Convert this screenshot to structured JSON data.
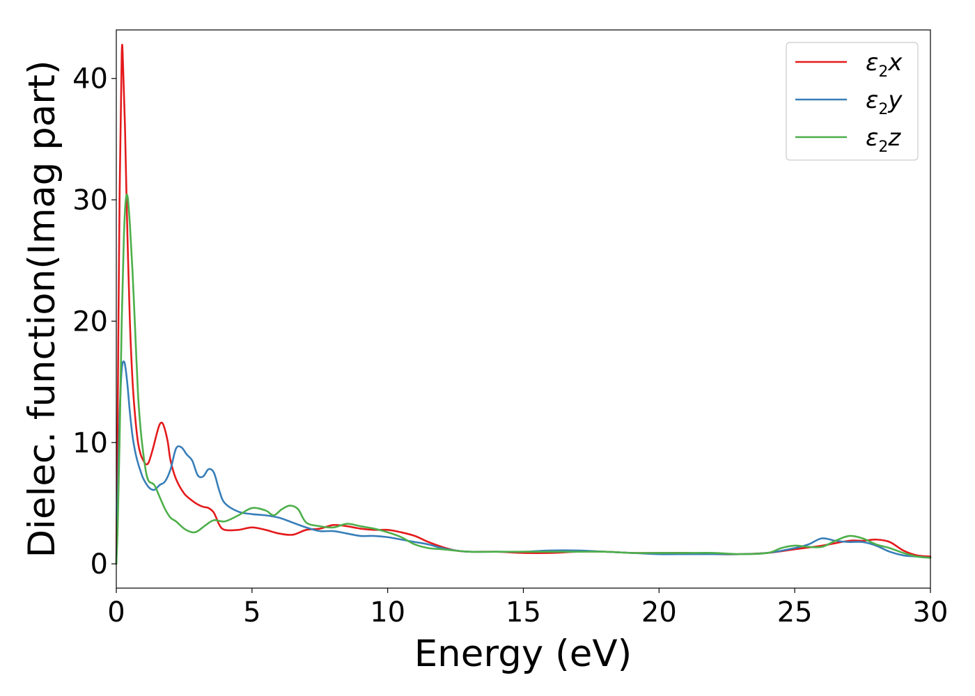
{
  "chart_data": {
    "type": "line",
    "title": "",
    "xlabel": "Energy (eV)",
    "ylabel": "Dielec. function(Imag part)",
    "xlim": [
      0,
      30
    ],
    "ylim": [
      -2,
      44
    ],
    "xticks": [
      0,
      5,
      10,
      15,
      20,
      25,
      30
    ],
    "yticks": [
      0,
      10,
      20,
      30,
      40
    ],
    "xtick_labels": [
      "0",
      "5",
      "10",
      "15",
      "20",
      "25",
      "30"
    ],
    "ytick_labels": [
      "0",
      "10",
      "20",
      "30",
      "40"
    ],
    "grid": false,
    "legend_position": "top-right",
    "series": [
      {
        "name": "ε2x",
        "legend": {
          "base": "ε",
          "sub": "2",
          "comp": "x"
        },
        "color": "#e41a1c",
        "x": [
          0,
          0.05,
          0.12,
          0.2,
          0.25,
          0.32,
          0.4,
          0.5,
          0.6,
          0.7,
          0.8,
          0.9,
          1.0,
          1.1,
          1.2,
          1.35,
          1.5,
          1.6,
          1.7,
          1.8,
          1.9,
          2.0,
          2.2,
          2.5,
          2.8,
          3.0,
          3.2,
          3.4,
          3.6,
          3.8,
          4.0,
          4.5,
          5.0,
          5.5,
          6.0,
          6.5,
          7.0,
          7.5,
          8.0,
          8.5,
          9.0,
          9.5,
          10.0,
          10.5,
          11.0,
          11.5,
          12.0,
          12.5,
          13.0,
          14.0,
          15.0,
          16.0,
          17.0,
          18.0,
          19.0,
          20.0,
          21.0,
          22.0,
          23.0,
          24.0,
          25.0,
          26.0,
          27.0,
          27.5,
          28.0,
          28.5,
          29.0,
          29.5,
          30.0
        ],
        "y": [
          0,
          12,
          30,
          42,
          41,
          36,
          28,
          20,
          15,
          12,
          10,
          9,
          8.5,
          8.2,
          8.4,
          9.5,
          10.8,
          11.5,
          11.6,
          11,
          10,
          8.5,
          7,
          5.8,
          5.2,
          4.9,
          4.7,
          4.6,
          4.2,
          3.2,
          2.8,
          2.8,
          3.0,
          2.8,
          2.5,
          2.4,
          2.8,
          2.9,
          3.2,
          3.1,
          2.9,
          2.8,
          2.8,
          2.6,
          2.3,
          1.8,
          1.4,
          1.1,
          1.0,
          1.0,
          0.9,
          0.9,
          1.0,
          1.0,
          0.9,
          0.9,
          0.9,
          0.8,
          0.8,
          0.9,
          1.2,
          1.5,
          1.9,
          1.9,
          2.0,
          1.8,
          1.1,
          0.7,
          0.6
        ]
      },
      {
        "name": "ε2y",
        "legend": {
          "base": "ε",
          "sub": "2",
          "comp": "y"
        },
        "color": "#377eb8",
        "x": [
          0,
          0.05,
          0.12,
          0.2,
          0.3,
          0.4,
          0.5,
          0.6,
          0.7,
          0.8,
          0.9,
          1.0,
          1.2,
          1.4,
          1.6,
          1.8,
          2.0,
          2.2,
          2.4,
          2.6,
          2.8,
          3.0,
          3.2,
          3.4,
          3.6,
          3.8,
          4.0,
          4.5,
          5.0,
          5.5,
          6.0,
          6.5,
          7.0,
          7.5,
          8.0,
          8.5,
          9.0,
          9.5,
          10.0,
          10.5,
          11.0,
          11.5,
          12.0,
          12.5,
          13.0,
          14.0,
          15.0,
          16.0,
          17.0,
          18.0,
          19.0,
          20.0,
          21.0,
          22.0,
          23.0,
          24.0,
          25.0,
          25.5,
          26.0,
          26.5,
          27.0,
          27.5,
          28.0,
          28.5,
          29.0,
          29.5,
          30.0
        ],
        "y": [
          0,
          5,
          12,
          16,
          16.6,
          15,
          12.5,
          10.5,
          9.2,
          8.3,
          7.6,
          7,
          6.3,
          6.1,
          6.5,
          6.8,
          7.8,
          9.5,
          9.6,
          9.0,
          8.5,
          7.3,
          7.2,
          7.8,
          7.5,
          6.0,
          5.0,
          4.3,
          4.1,
          4.0,
          3.8,
          3.4,
          3.0,
          2.7,
          2.7,
          2.5,
          2.3,
          2.3,
          2.2,
          2.0,
          1.8,
          1.6,
          1.3,
          1.1,
          1.0,
          1.0,
          1.0,
          1.1,
          1.1,
          1.0,
          0.9,
          0.8,
          0.8,
          0.8,
          0.8,
          0.9,
          1.3,
          1.6,
          2.1,
          1.9,
          1.8,
          1.8,
          1.5,
          1.0,
          0.7,
          0.6,
          0.5
        ]
      },
      {
        "name": "ε2z",
        "legend": {
          "base": "ε",
          "sub": "2",
          "comp": "z"
        },
        "color": "#4daf4a",
        "x": [
          0,
          0.05,
          0.12,
          0.2,
          0.28,
          0.35,
          0.42,
          0.5,
          0.6,
          0.7,
          0.8,
          0.9,
          1.0,
          1.1,
          1.2,
          1.4,
          1.6,
          1.8,
          2.0,
          2.2,
          2.5,
          2.8,
          3.0,
          3.3,
          3.6,
          4.0,
          4.5,
          5.0,
          5.5,
          5.8,
          6.1,
          6.4,
          6.7,
          7.0,
          7.5,
          8.0,
          8.5,
          9.0,
          9.5,
          10.0,
          10.5,
          11.0,
          11.5,
          12.0,
          13.0,
          14.0,
          15.0,
          16.0,
          17.0,
          18.0,
          19.0,
          20.0,
          21.0,
          22.0,
          23.0,
          24.0,
          24.5,
          25.0,
          25.5,
          26.0,
          26.5,
          27.0,
          27.5,
          28.0,
          28.5,
          29.0,
          29.5,
          30.0
        ],
        "y": [
          0,
          3,
          10,
          20,
          27,
          30,
          30.2,
          28,
          24,
          19,
          14,
          11,
          9,
          7.5,
          6.8,
          6.5,
          5.5,
          4.5,
          3.8,
          3.5,
          2.9,
          2.6,
          2.7,
          3.2,
          3.6,
          3.5,
          4.0,
          4.6,
          4.4,
          4.0,
          4.5,
          4.8,
          4.5,
          3.4,
          3.1,
          3.0,
          3.3,
          3.1,
          2.9,
          2.6,
          2.2,
          1.6,
          1.3,
          1.2,
          1.0,
          1.0,
          1.0,
          1.0,
          1.0,
          1.0,
          0.9,
          0.9,
          0.9,
          0.9,
          0.8,
          0.9,
          1.3,
          1.5,
          1.4,
          1.4,
          1.9,
          2.3,
          2.1,
          1.6,
          1.3,
          0.9,
          0.6,
          0.5
        ]
      }
    ]
  }
}
